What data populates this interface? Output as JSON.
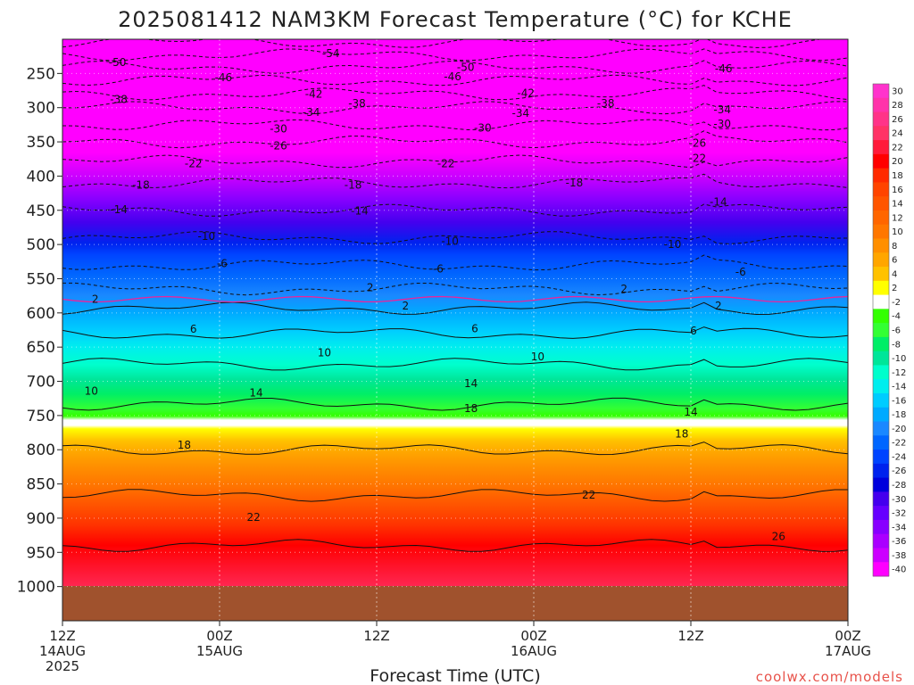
{
  "chart_data": {
    "type": "heatmap",
    "title": "2025081412 NAM3KM Forecast Temperature (°C) for KCHE",
    "xlabel": "Forecast Time (UTC)",
    "ylabel": "",
    "credit": "coolwx.com/models",
    "y_ticks": [
      {
        "value": 250,
        "label": "250"
      },
      {
        "value": 300,
        "label": "300"
      },
      {
        "value": 350,
        "label": "350"
      },
      {
        "value": 400,
        "label": "400"
      },
      {
        "value": 450,
        "label": "450"
      },
      {
        "value": 500,
        "label": "500"
      },
      {
        "value": 550,
        "label": "550"
      },
      {
        "value": 600,
        "label": "600"
      },
      {
        "value": 650,
        "label": "650"
      },
      {
        "value": 700,
        "label": "700"
      },
      {
        "value": 750,
        "label": "750"
      },
      {
        "value": 800,
        "label": "800"
      },
      {
        "value": 850,
        "label": "850"
      },
      {
        "value": 900,
        "label": "900"
      },
      {
        "value": 950,
        "label": "950"
      },
      {
        "value": 1000,
        "label": "1000"
      }
    ],
    "x_ticks": [
      {
        "hour": 0,
        "lines": [
          "12Z",
          "14AUG",
          "2025"
        ]
      },
      {
        "hour": 12,
        "lines": [
          "00Z",
          "15AUG"
        ]
      },
      {
        "hour": 24,
        "lines": [
          "12Z"
        ]
      },
      {
        "hour": 36,
        "lines": [
          "00Z",
          "16AUG"
        ]
      },
      {
        "hour": 48,
        "lines": [
          "12Z"
        ]
      },
      {
        "hour": 60,
        "lines": [
          "00Z",
          "17AUG"
        ]
      }
    ],
    "xlim": [
      0,
      60
    ],
    "pressure_range_hpa": [
      200,
      1050
    ],
    "ground_level_hpa": 955,
    "colorbar_labels": [
      "30",
      "28",
      "26",
      "24",
      "22",
      "20",
      "18",
      "16",
      "14",
      "12",
      "10",
      "8",
      "6",
      "4",
      "2",
      "-2",
      "-4",
      "-6",
      "-8",
      "-10",
      "-12",
      "-14",
      "-16",
      "-18",
      "-20",
      "-22",
      "-24",
      "-26",
      "-28",
      "-30",
      "-32",
      "-34",
      "-36",
      "-38",
      "-40"
    ],
    "colorbar_colors": [
      "#ff33cc",
      "#ff33aa",
      "#ff3388",
      "#ff3366",
      "#ff1a3a",
      "#ff0000",
      "#ff2a00",
      "#ff4400",
      "#ff5500",
      "#ff6600",
      "#ff7700",
      "#ff8f00",
      "#ffa600",
      "#ffc200",
      "#ffff00",
      "#ffffff",
      "#33ff00",
      "#33ff33",
      "#00ee66",
      "#00e699",
      "#00ffcc",
      "#00eeee",
      "#00ccff",
      "#00aaff",
      "#1a88ff",
      "#0066ff",
      "#0044ff",
      "#0022ee",
      "#0000dd",
      "#4400ee",
      "#6600ff",
      "#8800ff",
      "#aa00ff",
      "#cc00ff",
      "#ff00ff"
    ],
    "temperature_levels": [
      {
        "p": 960,
        "t": 27
      },
      {
        "p": 900,
        "t": 24
      },
      {
        "p": 850,
        "t": 21
      },
      {
        "p": 800,
        "t": 18
      },
      {
        "p": 750,
        "t": 15
      },
      {
        "p": 700,
        "t": 12
      },
      {
        "p": 650,
        "t": 8
      },
      {
        "p": 600,
        "t": 3
      },
      {
        "p": 580,
        "t": 0
      },
      {
        "p": 550,
        "t": -4
      },
      {
        "p": 500,
        "t": -9
      },
      {
        "p": 450,
        "t": -14
      },
      {
        "p": 400,
        "t": -19
      },
      {
        "p": 350,
        "t": -26
      },
      {
        "p": 300,
        "t": -34
      },
      {
        "p": 250,
        "t": -44
      },
      {
        "p": 200,
        "t": -55
      }
    ],
    "contour_labels": [
      {
        "hour": 20.5,
        "p": 221,
        "text": "-54"
      },
      {
        "hour": 4.2,
        "p": 234,
        "text": "-50"
      },
      {
        "hour": 30.8,
        "p": 241,
        "text": "-50"
      },
      {
        "hour": 12.3,
        "p": 256,
        "text": "-46"
      },
      {
        "hour": 29.8,
        "p": 255,
        "text": "-46"
      },
      {
        "hour": 50.5,
        "p": 243,
        "text": "-46"
      },
      {
        "hour": 19.2,
        "p": 280,
        "text": "-42"
      },
      {
        "hour": 35.4,
        "p": 279,
        "text": "-42"
      },
      {
        "hour": 4.3,
        "p": 288,
        "text": "-38"
      },
      {
        "hour": 22.5,
        "p": 294,
        "text": "-38"
      },
      {
        "hour": 41.5,
        "p": 294,
        "text": "-38"
      },
      {
        "hour": 19.0,
        "p": 307,
        "text": "-34"
      },
      {
        "hour": 35.0,
        "p": 308,
        "text": "-34"
      },
      {
        "hour": 50.4,
        "p": 303,
        "text": "-34"
      },
      {
        "hour": 16.5,
        "p": 331,
        "text": "-30"
      },
      {
        "hour": 32.1,
        "p": 330,
        "text": "-30"
      },
      {
        "hour": 50.4,
        "p": 324,
        "text": "-30"
      },
      {
        "hour": 16.5,
        "p": 356,
        "text": "-26"
      },
      {
        "hour": 48.5,
        "p": 352,
        "text": "-26"
      },
      {
        "hour": 10.0,
        "p": 382,
        "text": "-22"
      },
      {
        "hour": 29.3,
        "p": 382,
        "text": "-22"
      },
      {
        "hour": 48.5,
        "p": 374,
        "text": "-22"
      },
      {
        "hour": 6.0,
        "p": 413,
        "text": "-18"
      },
      {
        "hour": 22.2,
        "p": 413,
        "text": "-18"
      },
      {
        "hour": 39.1,
        "p": 410,
        "text": "-18"
      },
      {
        "hour": 4.3,
        "p": 449,
        "text": "-14"
      },
      {
        "hour": 22.7,
        "p": 451,
        "text": "-14"
      },
      {
        "hour": 50.1,
        "p": 438,
        "text": "-14"
      },
      {
        "hour": 11.0,
        "p": 488,
        "text": "-10"
      },
      {
        "hour": 29.6,
        "p": 495,
        "text": "-10"
      },
      {
        "hour": 46.6,
        "p": 500,
        "text": "-10"
      },
      {
        "hour": 12.2,
        "p": 528,
        "text": "-6"
      },
      {
        "hour": 28.7,
        "p": 536,
        "text": "-6"
      },
      {
        "hour": 51.8,
        "p": 540,
        "text": "-6"
      },
      {
        "hour": 2.5,
        "p": 580,
        "text": "2"
      },
      {
        "hour": 23.5,
        "p": 563,
        "text": "2"
      },
      {
        "hour": 42.9,
        "p": 565,
        "text": "2"
      },
      {
        "hour": 26.2,
        "p": 590,
        "text": "2"
      },
      {
        "hour": 50.1,
        "p": 590,
        "text": "2"
      },
      {
        "hour": 10.0,
        "p": 624,
        "text": "6"
      },
      {
        "hour": 31.5,
        "p": 623,
        "text": "6"
      },
      {
        "hour": 48.2,
        "p": 626,
        "text": "6"
      },
      {
        "hour": 20.0,
        "p": 658,
        "text": "10"
      },
      {
        "hour": 36.3,
        "p": 664,
        "text": "10"
      },
      {
        "hour": 2.2,
        "p": 714,
        "text": "10"
      },
      {
        "hour": 14.8,
        "p": 717,
        "text": "14"
      },
      {
        "hour": 31.2,
        "p": 703,
        "text": "14"
      },
      {
        "hour": 48.0,
        "p": 745,
        "text": "14"
      },
      {
        "hour": 31.2,
        "p": 740,
        "text": "18"
      },
      {
        "hour": 9.3,
        "p": 793,
        "text": "18"
      },
      {
        "hour": 47.3,
        "p": 777,
        "text": "18"
      },
      {
        "hour": 14.6,
        "p": 899,
        "text": "22"
      },
      {
        "hour": 40.2,
        "p": 866,
        "text": "22"
      },
      {
        "hour": 54.7,
        "p": 927,
        "text": "26"
      }
    ]
  }
}
